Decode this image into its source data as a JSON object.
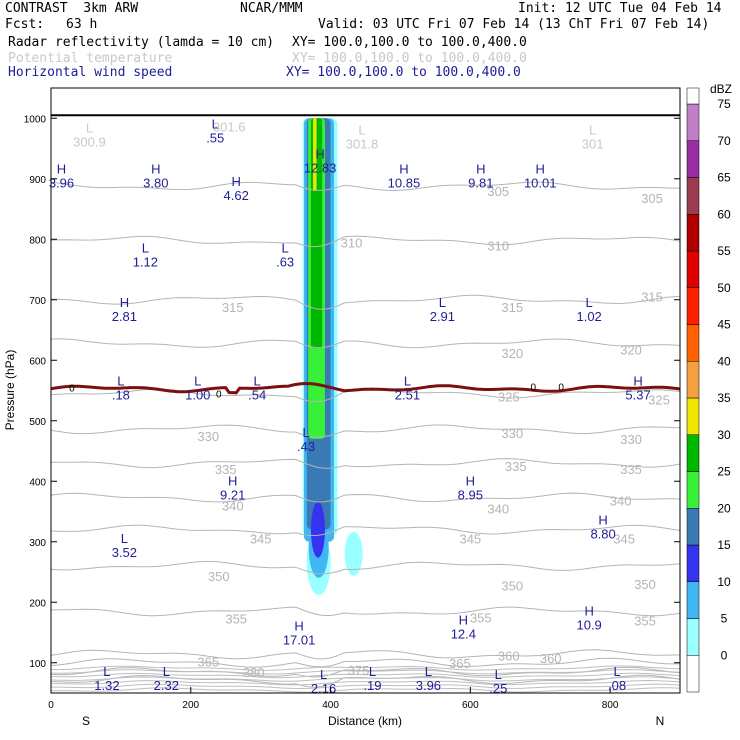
{
  "header": {
    "experiment": "CONTRAST  3km ARW",
    "center": "NCAR/MMM",
    "init": "Init: 12 UTC Tue 04 Feb 14",
    "fcst_label": "Fcst:",
    "fcst_value": "63 h",
    "valid": "Valid: 03 UTC Fri 07 Feb 14 (13 ChT Fri 07 Feb 14)",
    "fields": [
      {
        "name": "Radar reflectivity (lamda = 10 cm)",
        "xy": "XY= 100.0,100.0 to 100.0,400.0",
        "color": "#000000"
      },
      {
        "name": "Potential temperature",
        "xy": "XY= 100.0,100.0 to 100.0,400.0",
        "color": "#c8c8c8"
      },
      {
        "name": "Horizontal wind speed",
        "xy": "XY= 100.0,100.0 to 100.0,400.0",
        "color": "#1e1e96"
      }
    ]
  },
  "chart_data": {
    "type": "cross-section",
    "xlabel": "Distance (km)",
    "ylabel": "Pressure (hPa)",
    "xlim": [
      0,
      900
    ],
    "ylim": [
      1050,
      50
    ],
    "x_ticks": [
      0,
      200,
      400,
      600,
      800
    ],
    "y_ticks": [
      100,
      200,
      300,
      400,
      500,
      600,
      700,
      800,
      900,
      1000
    ],
    "left_end_label": "S",
    "right_end_label": "N",
    "colorbar": {
      "title": "dBZ",
      "levels": [
        0,
        5,
        10,
        15,
        20,
        25,
        30,
        35,
        40,
        45,
        50,
        55,
        60,
        65,
        70,
        75
      ],
      "colors": [
        "#ffffff",
        "#99ffff",
        "#3fb7f2",
        "#3434f0",
        "#3a7ab4",
        "#38f038",
        "#00b800",
        "#f0e600",
        "#f5a040",
        "#ff6000",
        "#ff2000",
        "#e00000",
        "#b00000",
        "#9c3c50",
        "#9a2ca4",
        "#c080c8"
      ]
    },
    "theta_contours": [
      {
        "label": "305",
        "p": 888
      },
      {
        "label": "310",
        "p": 798
      },
      {
        "label": "315",
        "p": 700
      },
      {
        "label": "320",
        "p": 628
      },
      {
        "label": "325",
        "p": 545
      },
      {
        "label": "330",
        "p": 486
      },
      {
        "label": "335",
        "p": 430
      },
      {
        "label": "340",
        "p": 373
      },
      {
        "label": "345",
        "p": 320
      },
      {
        "label": "350",
        "p": 260
      },
      {
        "label": "355",
        "p": 185
      },
      {
        "label": "360",
        "p": 114
      },
      {
        "label": "365",
        "p": 100
      },
      {
        "label": "375",
        "p": 85
      },
      {
        "label": "380",
        "p": 72
      }
    ],
    "theta_labels": [
      {
        "text": "380",
        "x": 290,
        "p": 85
      },
      {
        "text": "365",
        "x": 225,
        "p": 102
      },
      {
        "text": "375",
        "x": 440,
        "p": 88
      },
      {
        "text": "365",
        "x": 585,
        "p": 100
      },
      {
        "text": "360",
        "x": 655,
        "p": 112
      },
      {
        "text": "360",
        "x": 715,
        "p": 108
      },
      {
        "text": "355",
        "x": 265,
        "p": 173
      },
      {
        "text": "355",
        "x": 615,
        "p": 175
      },
      {
        "text": "355",
        "x": 850,
        "p": 170
      },
      {
        "text": "350",
        "x": 240,
        "p": 243
      },
      {
        "text": "350",
        "x": 660,
        "p": 228
      },
      {
        "text": "350",
        "x": 850,
        "p": 230
      },
      {
        "text": "345",
        "x": 300,
        "p": 305
      },
      {
        "text": "345",
        "x": 600,
        "p": 305
      },
      {
        "text": "345",
        "x": 820,
        "p": 305
      },
      {
        "text": "340",
        "x": 260,
        "p": 360
      },
      {
        "text": "340",
        "x": 640,
        "p": 355
      },
      {
        "text": "340",
        "x": 815,
        "p": 368
      },
      {
        "text": "335",
        "x": 250,
        "p": 420
      },
      {
        "text": "335",
        "x": 665,
        "p": 425
      },
      {
        "text": "335",
        "x": 830,
        "p": 420
      },
      {
        "text": "330",
        "x": 225,
        "p": 475
      },
      {
        "text": "330",
        "x": 660,
        "p": 480
      },
      {
        "text": "330",
        "x": 830,
        "p": 470
      },
      {
        "text": "325",
        "x": 655,
        "p": 540
      },
      {
        "text": "325",
        "x": 870,
        "p": 535
      },
      {
        "text": "320",
        "x": 660,
        "p": 612
      },
      {
        "text": "320",
        "x": 830,
        "p": 618
      },
      {
        "text": "315",
        "x": 260,
        "p": 688
      },
      {
        "text": "315",
        "x": 660,
        "p": 688
      },
      {
        "text": "315",
        "x": 860,
        "p": 705
      },
      {
        "text": "310",
        "x": 430,
        "p": 795
      },
      {
        "text": "310",
        "x": 640,
        "p": 790
      },
      {
        "text": "305",
        "x": 640,
        "p": 880
      },
      {
        "text": "305",
        "x": 860,
        "p": 868
      }
    ],
    "zero_line_labels": [
      {
        "text": "0",
        "x": 30,
        "p": 555
      },
      {
        "text": "0",
        "x": 240,
        "p": 545
      },
      {
        "text": "0",
        "x": 690,
        "p": 557
      },
      {
        "text": "0",
        "x": 730,
        "p": 557
      }
    ],
    "extrema": [
      {
        "type": "L",
        "value": "1.32",
        "x": 80,
        "p": 80
      },
      {
        "type": "L",
        "value": "2.32",
        "x": 165,
        "p": 80
      },
      {
        "type": "L",
        "value": "2.16",
        "x": 390,
        "p": 75
      },
      {
        "type": "L",
        "value": ".19",
        "x": 460,
        "p": 80
      },
      {
        "type": "L",
        "value": "3.96",
        "x": 540,
        "p": 80
      },
      {
        "type": "L",
        "value": ".25",
        "x": 640,
        "p": 75
      },
      {
        "type": "L",
        "value": ".08",
        "x": 810,
        "p": 80
      },
      {
        "type": "H",
        "value": "17.01",
        "x": 355,
        "p": 155
      },
      {
        "type": "H",
        "value": "12.4",
        "x": 590,
        "p": 165
      },
      {
        "type": "H",
        "value": "10.9",
        "x": 770,
        "p": 180
      },
      {
        "type": "L",
        "value": "3.52",
        "x": 105,
        "p": 300
      },
      {
        "type": "H",
        "value": "8.80",
        "x": 790,
        "p": 330
      },
      {
        "type": "H",
        "value": "9.21",
        "x": 260,
        "p": 395
      },
      {
        "type": "H",
        "value": "8.95",
        "x": 600,
        "p": 395
      },
      {
        "type": "L",
        "value": ".43",
        "x": 365,
        "p": 475
      },
      {
        "type": "L",
        "value": ".18",
        "x": 100,
        "p": 560
      },
      {
        "type": "L",
        "value": "1.00",
        "x": 210,
        "p": 560
      },
      {
        "type": "L",
        "value": ".54",
        "x": 295,
        "p": 560
      },
      {
        "type": "L",
        "value": "2.51",
        "x": 510,
        "p": 560
      },
      {
        "type": "H",
        "value": "5.37",
        "x": 840,
        "p": 560
      },
      {
        "type": "H",
        "value": "2.81",
        "x": 105,
        "p": 690
      },
      {
        "type": "L",
        "value": "2.91",
        "x": 560,
        "p": 690
      },
      {
        "type": "L",
        "value": "1.02",
        "x": 770,
        "p": 690
      },
      {
        "type": "L",
        "value": "1.12",
        "x": 135,
        "p": 780
      },
      {
        "type": "L",
        "value": ".63",
        "x": 335,
        "p": 780
      },
      {
        "type": "H",
        "value": "4.62",
        "x": 265,
        "p": 890
      },
      {
        "type": "H",
        "value": "3.96",
        "x": 15,
        "p": 910
      },
      {
        "type": "H",
        "value": "3.80",
        "x": 150,
        "p": 910
      },
      {
        "type": "H",
        "value": "12.83",
        "x": 385,
        "p": 935
      },
      {
        "type": "H",
        "value": "10.85",
        "x": 505,
        "p": 910
      },
      {
        "type": "H",
        "value": "9.81",
        "x": 615,
        "p": 910
      },
      {
        "type": "H",
        "value": "10.01",
        "x": 700,
        "p": 910
      },
      {
        "type": "L",
        "value": ".55",
        "x": 235,
        "p": 985
      },
      {
        "type": "L",
        "value": "300.9",
        "x": 55,
        "p": 978
      },
      {
        "type": "L",
        "value": "301.8",
        "x": 445,
        "p": 975
      },
      {
        "type": "L",
        "value": "301",
        "x": 775,
        "p": 975
      },
      {
        "type": "",
        "value": "301.6",
        "x": 255,
        "p": 1003
      }
    ],
    "extrema_colors": {
      "wind": "#1e1e96",
      "theta": "#c8c8c8"
    },
    "zero_line_color": "#7a1010",
    "ground_p": 1005
  }
}
